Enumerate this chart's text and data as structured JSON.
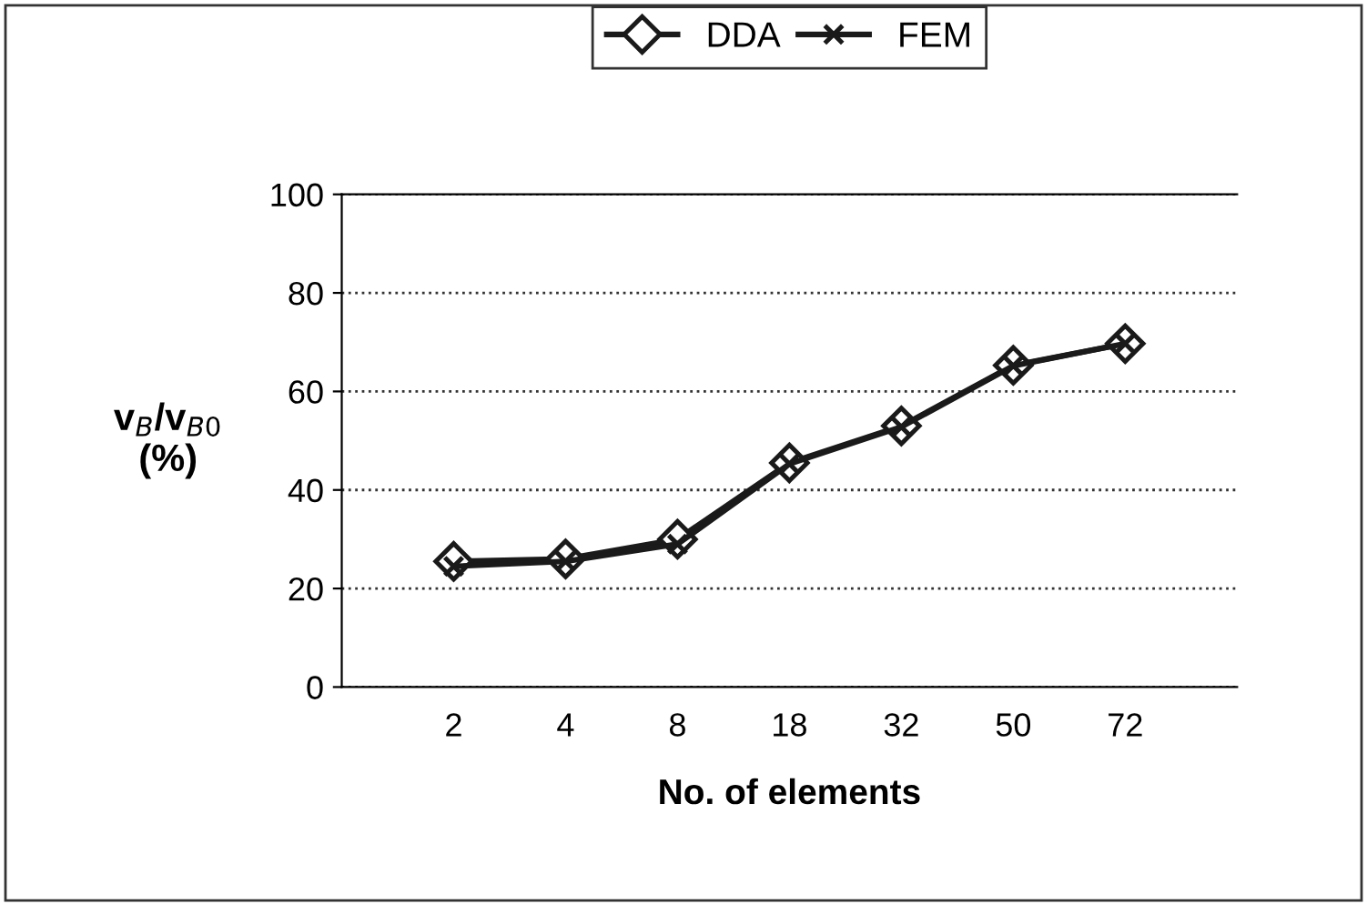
{
  "chart_data": {
    "type": "line",
    "xlabel": "No. of elements",
    "ylabel": "v$_{B}$/v$_{B0}$\n(%)",
    "categories": [
      "2",
      "4",
      "8",
      "18",
      "32",
      "50",
      "72"
    ],
    "series": [
      {
        "name": "DDA",
        "color": "#1a1a1a",
        "marker": "diamond",
        "values": [
          25.5,
          26,
          30,
          45.5,
          53,
          65.3,
          69.7
        ]
      },
      {
        "name": "FEM",
        "color": "#1a1a1a",
        "marker": "cross",
        "values": [
          24.5,
          25.5,
          29,
          45.3,
          52.8,
          65.2,
          69.7
        ]
      }
    ],
    "ylim": [
      0,
      100
    ],
    "yticks": [
      0,
      20,
      40,
      60,
      80,
      100
    ],
    "grid": "y",
    "legend": "top",
    "line_style": "solid"
  }
}
